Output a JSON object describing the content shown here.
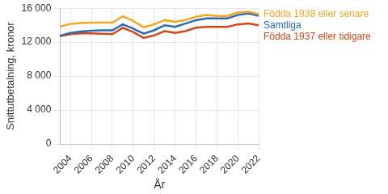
{
  "chart_data": {
    "type": "line",
    "x_label": "År",
    "y_label": "Snittutbetalning, kronor",
    "x": [
      2003,
      2004,
      2005,
      2006,
      2007,
      2008,
      2009,
      2010,
      2011,
      2012,
      2013,
      2014,
      2015,
      2016,
      2017,
      2018,
      2019,
      2020,
      2021,
      2022
    ],
    "series": [
      {
        "name": "Födda 1938 eller senare",
        "color": "#f5a623",
        "values": [
          13850,
          14150,
          14250,
          14300,
          14300,
          14300,
          15050,
          14500,
          13750,
          14100,
          14600,
          14400,
          14600,
          15000,
          15200,
          15100,
          15100,
          15500,
          15600,
          15300
        ]
      },
      {
        "name": "Samtliga",
        "color": "#2a6ab0",
        "values": [
          12750,
          13100,
          13250,
          13350,
          13400,
          13400,
          14100,
          13600,
          13000,
          13400,
          14000,
          13800,
          14200,
          14600,
          14800,
          14800,
          14800,
          15200,
          15400,
          15100
        ]
      },
      {
        "name": "Födda 1937 eller tidigare",
        "color": "#d4461a",
        "values": [
          12700,
          12950,
          13050,
          13050,
          13000,
          12950,
          13700,
          13200,
          12500,
          12800,
          13300,
          13100,
          13300,
          13700,
          13800,
          13800,
          13800,
          14100,
          14200,
          14000
        ]
      }
    ],
    "xlim": [
      2003,
      2022
    ],
    "xticks": [
      2004,
      2006,
      2008,
      2010,
      2012,
      2014,
      2016,
      2018,
      2020,
      2022
    ],
    "ylim": [
      0,
      16000
    ],
    "yticks": [
      0,
      {
        "value": 4000,
        "label": "4 000"
      },
      {
        "value": 8000,
        "label": "8 000"
      },
      {
        "value": 12000,
        "label": "12 000"
      },
      {
        "value": 16000,
        "label": "16 000"
      }
    ],
    "grid": true
  }
}
